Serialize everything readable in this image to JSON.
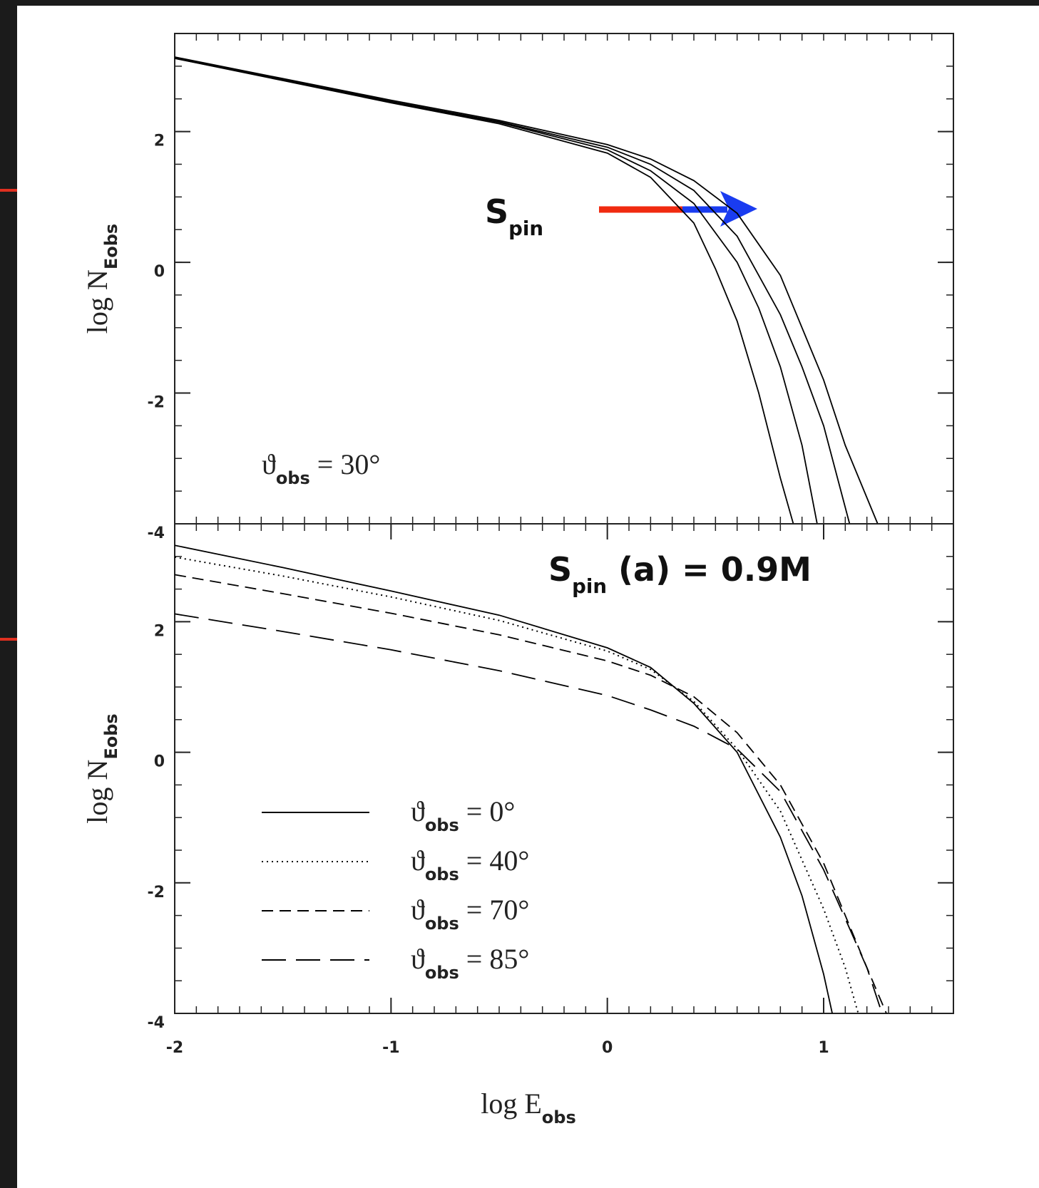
{
  "chart_data": [
    {
      "type": "line",
      "ylabel": "log NEobs",
      "ylim": [
        -4,
        3.5
      ],
      "yticks": [
        -4,
        -2,
        0,
        2
      ],
      "xlim": [
        -2,
        1.6
      ],
      "annotations": [
        "ϑobs = 30°",
        "Spin"
      ],
      "series": [
        {
          "color": "#000000",
          "dash": "solid",
          "x": [
            -2,
            -1.5,
            -1,
            -0.5,
            0,
            0.2,
            0.4,
            0.5,
            0.6,
            0.7,
            0.8,
            0.86
          ],
          "values": [
            3.12,
            2.78,
            2.44,
            2.12,
            1.67,
            1.3,
            0.6,
            -0.1,
            -0.9,
            -2.0,
            -3.3,
            -4
          ]
        },
        {
          "color": "#000000",
          "dash": "solid",
          "x": [
            -2,
            -1.5,
            -1,
            -0.5,
            0,
            0.2,
            0.4,
            0.6,
            0.7,
            0.8,
            0.9,
            0.97
          ],
          "values": [
            3.12,
            2.79,
            2.45,
            2.14,
            1.72,
            1.4,
            0.9,
            0.0,
            -0.7,
            -1.6,
            -2.8,
            -4
          ]
        },
        {
          "color": "#000000",
          "dash": "solid",
          "x": [
            -2,
            -1.5,
            -1,
            -0.5,
            0,
            0.2,
            0.4,
            0.6,
            0.8,
            0.9,
            1.0,
            1.12
          ],
          "values": [
            3.13,
            2.8,
            2.46,
            2.15,
            1.76,
            1.5,
            1.1,
            0.4,
            -0.8,
            -1.6,
            -2.5,
            -4
          ]
        },
        {
          "color": "#000000",
          "dash": "solid",
          "x": [
            -2,
            -1.5,
            -1,
            -0.5,
            0,
            0.2,
            0.4,
            0.6,
            0.8,
            1.0,
            1.1,
            1.25
          ],
          "values": [
            3.14,
            2.81,
            2.48,
            2.17,
            1.8,
            1.58,
            1.25,
            0.75,
            -0.2,
            -1.8,
            -2.8,
            -4
          ]
        }
      ]
    },
    {
      "type": "line",
      "xlabel": "log Eobs",
      "ylabel": "log NEobs",
      "ylim": [
        -4,
        3.5
      ],
      "yticks": [
        -4,
        -2,
        0,
        2
      ],
      "xlim": [
        -2,
        1.6
      ],
      "xticks": [
        -2,
        -1,
        0,
        1
      ],
      "annotations": [
        "Spin (a) = 0.9M"
      ],
      "legend": "lower left",
      "series": [
        {
          "name": "ϑobs = 0°",
          "color": "#000000",
          "dash": "solid",
          "x": [
            -2,
            -1.5,
            -1,
            -0.5,
            0,
            0.2,
            0.4,
            0.6,
            0.8,
            0.9,
            1.0,
            1.04
          ],
          "values": [
            3.17,
            2.83,
            2.47,
            2.1,
            1.6,
            1.3,
            0.75,
            0.0,
            -1.3,
            -2.2,
            -3.4,
            -4
          ]
        },
        {
          "name": "ϑobs = 40°",
          "color": "#000000",
          "dash": "dotted",
          "x": [
            -2,
            -1.5,
            -1,
            -0.5,
            0,
            0.2,
            0.4,
            0.6,
            0.8,
            1.0,
            1.1,
            1.16
          ],
          "values": [
            2.99,
            2.7,
            2.38,
            2.02,
            1.55,
            1.27,
            0.78,
            0.05,
            -0.9,
            -2.4,
            -3.3,
            -4
          ]
        },
        {
          "name": "ϑobs = 70°",
          "color": "#000000",
          "dash": "dashed",
          "x": [
            -2,
            -1.5,
            -1,
            -0.5,
            0,
            0.2,
            0.4,
            0.6,
            0.8,
            1.0,
            1.2,
            1.29
          ],
          "values": [
            2.72,
            2.43,
            2.13,
            1.8,
            1.4,
            1.18,
            0.85,
            0.3,
            -0.5,
            -1.7,
            -3.3,
            -4
          ]
        },
        {
          "name": "ϑobs = 85°",
          "color": "#000000",
          "dash": "longdash",
          "x": [
            -2,
            -1.5,
            -1,
            -0.5,
            0,
            0.2,
            0.4,
            0.6,
            0.8,
            1.0,
            1.2,
            1.27
          ],
          "values": [
            2.12,
            1.85,
            1.57,
            1.25,
            0.87,
            0.65,
            0.4,
            0.05,
            -0.6,
            -1.8,
            -3.3,
            -4
          ]
        }
      ]
    }
  ]
}
